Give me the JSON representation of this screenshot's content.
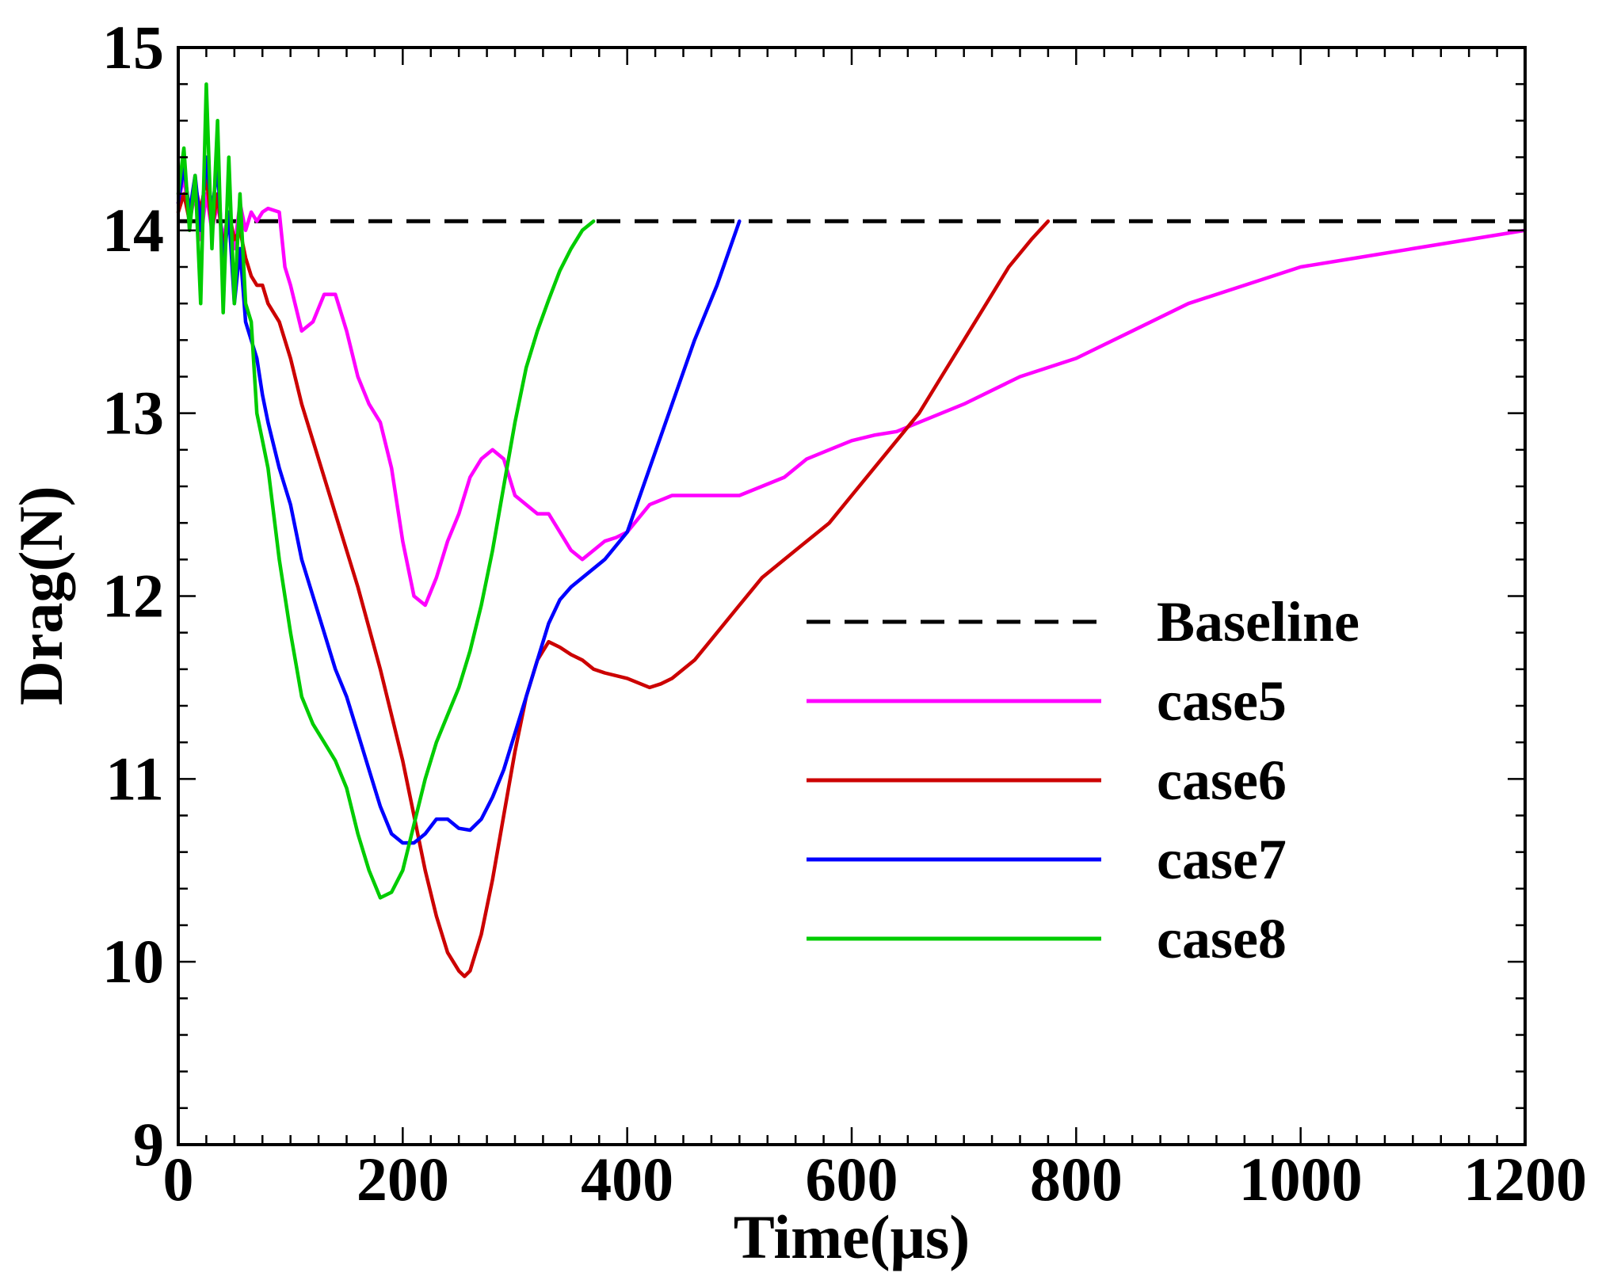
{
  "chart_data": {
    "type": "line",
    "title": "",
    "xlabel": "Time(μs)",
    "ylabel": "Drag(N)",
    "xlim": [
      0,
      1200
    ],
    "ylim": [
      9,
      15
    ],
    "xticks": [
      0,
      200,
      400,
      600,
      800,
      1000,
      1200
    ],
    "yticks": [
      9,
      10,
      11,
      12,
      13,
      14,
      15
    ],
    "legend_position": "center-right",
    "series": [
      {
        "name": "Baseline",
        "color": "#000000",
        "style": "dashed",
        "x": [
          0,
          1200
        ],
        "y": [
          14.05,
          14.05
        ]
      },
      {
        "name": "case5",
        "color": "#ff00ff",
        "style": "solid",
        "x": [
          0,
          5,
          10,
          15,
          20,
          25,
          30,
          35,
          40,
          45,
          50,
          55,
          60,
          65,
          70,
          75,
          80,
          90,
          95,
          100,
          110,
          120,
          130,
          140,
          150,
          160,
          170,
          180,
          190,
          200,
          210,
          220,
          230,
          240,
          250,
          260,
          270,
          280,
          290,
          300,
          310,
          320,
          330,
          340,
          350,
          360,
          370,
          380,
          390,
          400,
          420,
          440,
          460,
          480,
          500,
          520,
          540,
          560,
          580,
          600,
          620,
          640,
          660,
          700,
          750,
          800,
          850,
          900,
          950,
          1000,
          1050,
          1100,
          1150,
          1200
        ],
        "y": [
          14.15,
          14.3,
          14.05,
          14.2,
          13.95,
          14.2,
          14.0,
          14.15,
          13.95,
          14.1,
          13.9,
          14.15,
          14.0,
          14.1,
          14.05,
          14.1,
          14.12,
          14.1,
          13.8,
          13.7,
          13.45,
          13.5,
          13.65,
          13.65,
          13.45,
          13.2,
          13.05,
          12.95,
          12.7,
          12.3,
          12.0,
          11.95,
          12.1,
          12.3,
          12.45,
          12.65,
          12.75,
          12.8,
          12.75,
          12.55,
          12.5,
          12.45,
          12.45,
          12.35,
          12.25,
          12.2,
          12.25,
          12.3,
          12.32,
          12.35,
          12.5,
          12.55,
          12.55,
          12.55,
          12.55,
          12.6,
          12.65,
          12.75,
          12.8,
          12.85,
          12.88,
          12.9,
          12.95,
          13.05,
          13.2,
          13.3,
          13.45,
          13.6,
          13.7,
          13.8,
          13.85,
          13.9,
          13.95,
          14.0
        ]
      },
      {
        "name": "case6",
        "color": "#cc0000",
        "style": "solid",
        "x": [
          0,
          5,
          10,
          15,
          20,
          25,
          30,
          35,
          40,
          45,
          50,
          55,
          60,
          65,
          70,
          75,
          80,
          90,
          100,
          110,
          120,
          140,
          160,
          180,
          200,
          210,
          220,
          230,
          240,
          250,
          255,
          260,
          270,
          280,
          290,
          300,
          310,
          320,
          330,
          340,
          350,
          360,
          370,
          380,
          400,
          420,
          430,
          440,
          460,
          480,
          500,
          520,
          540,
          560,
          580,
          600,
          620,
          640,
          660,
          680,
          700,
          720,
          740,
          760,
          775
        ],
        "y": [
          14.1,
          14.2,
          14.05,
          14.25,
          14.1,
          14.3,
          14.0,
          14.2,
          13.9,
          14.1,
          13.95,
          14.0,
          13.85,
          13.75,
          13.7,
          13.7,
          13.6,
          13.5,
          13.3,
          13.05,
          12.85,
          12.45,
          12.05,
          11.6,
          11.1,
          10.8,
          10.5,
          10.25,
          10.05,
          9.95,
          9.92,
          9.95,
          10.15,
          10.45,
          10.8,
          11.15,
          11.45,
          11.65,
          11.75,
          11.72,
          11.68,
          11.65,
          11.6,
          11.58,
          11.55,
          11.5,
          11.52,
          11.55,
          11.65,
          11.8,
          11.95,
          12.1,
          12.2,
          12.3,
          12.4,
          12.55,
          12.7,
          12.85,
          13.0,
          13.2,
          13.4,
          13.6,
          13.8,
          13.95,
          14.05
        ]
      },
      {
        "name": "case7",
        "color": "#0000ff",
        "style": "solid",
        "x": [
          0,
          5,
          10,
          15,
          20,
          25,
          30,
          35,
          40,
          45,
          50,
          55,
          60,
          65,
          70,
          75,
          80,
          90,
          100,
          110,
          120,
          130,
          140,
          150,
          160,
          170,
          180,
          190,
          200,
          210,
          220,
          230,
          240,
          250,
          260,
          270,
          280,
          290,
          300,
          310,
          320,
          330,
          340,
          350,
          360,
          380,
          400,
          420,
          440,
          460,
          480,
          500
        ],
        "y": [
          14.15,
          14.35,
          14.1,
          14.3,
          14.0,
          14.4,
          14.1,
          14.35,
          13.8,
          14.1,
          13.6,
          13.9,
          13.5,
          13.4,
          13.3,
          13.1,
          12.95,
          12.7,
          12.5,
          12.2,
          12.0,
          11.8,
          11.6,
          11.45,
          11.25,
          11.05,
          10.85,
          10.7,
          10.65,
          10.65,
          10.7,
          10.78,
          10.78,
          10.73,
          10.72,
          10.78,
          10.9,
          11.05,
          11.25,
          11.45,
          11.65,
          11.85,
          11.98,
          12.05,
          12.1,
          12.2,
          12.35,
          12.7,
          13.05,
          13.4,
          13.7,
          14.05
        ]
      },
      {
        "name": "case8",
        "color": "#00cc00",
        "style": "solid",
        "x": [
          0,
          5,
          10,
          15,
          20,
          25,
          30,
          35,
          40,
          45,
          50,
          55,
          60,
          65,
          70,
          75,
          80,
          90,
          100,
          110,
          120,
          130,
          140,
          150,
          160,
          170,
          180,
          190,
          200,
          210,
          220,
          230,
          240,
          250,
          260,
          270,
          280,
          290,
          300,
          310,
          320,
          330,
          340,
          350,
          360,
          370
        ],
        "y": [
          14.2,
          14.45,
          14.0,
          14.3,
          13.6,
          14.8,
          13.9,
          14.6,
          13.55,
          14.4,
          13.6,
          14.2,
          13.6,
          13.5,
          13.0,
          12.85,
          12.7,
          12.2,
          11.8,
          11.45,
          11.3,
          11.2,
          11.1,
          10.95,
          10.7,
          10.5,
          10.35,
          10.38,
          10.5,
          10.75,
          11.0,
          11.2,
          11.35,
          11.5,
          11.7,
          11.95,
          12.25,
          12.6,
          12.95,
          13.25,
          13.45,
          13.62,
          13.78,
          13.9,
          14.0,
          14.05
        ]
      }
    ]
  }
}
